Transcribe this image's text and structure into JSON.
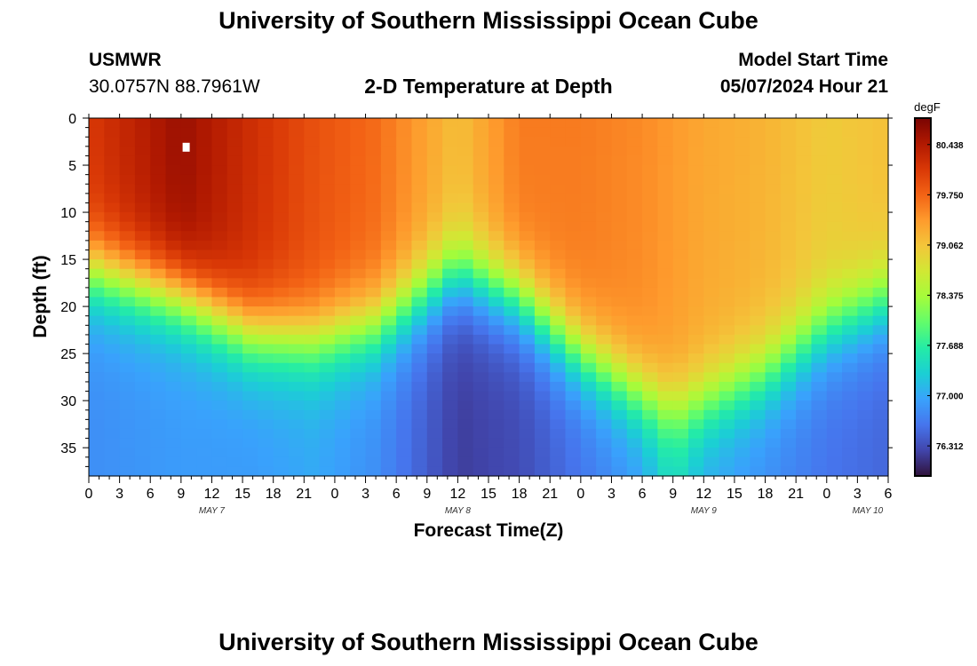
{
  "header": {
    "title": "University of Southern Mississippi Ocean Cube",
    "station": "USMWR",
    "coordinates": "30.0757N  88.7961W",
    "subtitle": "2-D Temperature at Depth",
    "model_start_label": "Model Start Time",
    "model_start_value": "05/07/2024 Hour 21"
  },
  "footer": {
    "title": "University of Southern Mississippi Ocean Cube"
  },
  "chart_data": {
    "type": "heatmap",
    "title": "2-D Temperature at Depth",
    "xlabel": "Forecast Time(Z)",
    "ylabel": "Depth (ft)",
    "x_range_hours": [
      0,
      78
    ],
    "y_range_ft": [
      0,
      38
    ],
    "x_ticks": [
      {
        "h": 0,
        "label": "0"
      },
      {
        "h": 3,
        "label": "3"
      },
      {
        "h": 6,
        "label": "6"
      },
      {
        "h": 9,
        "label": "9"
      },
      {
        "h": 12,
        "label": "12"
      },
      {
        "h": 15,
        "label": "15"
      },
      {
        "h": 18,
        "label": "18"
      },
      {
        "h": 21,
        "label": "21"
      },
      {
        "h": 24,
        "label": "0"
      },
      {
        "h": 27,
        "label": "3"
      },
      {
        "h": 30,
        "label": "6"
      },
      {
        "h": 33,
        "label": "9"
      },
      {
        "h": 36,
        "label": "12"
      },
      {
        "h": 39,
        "label": "15"
      },
      {
        "h": 42,
        "label": "18"
      },
      {
        "h": 45,
        "label": "21"
      },
      {
        "h": 48,
        "label": "0"
      },
      {
        "h": 51,
        "label": "3"
      },
      {
        "h": 54,
        "label": "6"
      },
      {
        "h": 57,
        "label": "9"
      },
      {
        "h": 60,
        "label": "12"
      },
      {
        "h": 63,
        "label": "15"
      },
      {
        "h": 66,
        "label": "18"
      },
      {
        "h": 69,
        "label": "21"
      },
      {
        "h": 72,
        "label": "0"
      },
      {
        "h": 75,
        "label": "3"
      },
      {
        "h": 78,
        "label": "6"
      }
    ],
    "day_labels": [
      {
        "h": 12,
        "label": "MAY 7"
      },
      {
        "h": 36,
        "label": "MAY 8"
      },
      {
        "h": 60,
        "label": "MAY 9"
      },
      {
        "h": 76,
        "label": "MAY 10"
      }
    ],
    "y_ticks": [
      0,
      5,
      10,
      15,
      20,
      25,
      30,
      35
    ],
    "colorbar": {
      "unit": "degF",
      "min": 75.9,
      "max": 80.8,
      "tick_labels": [
        "80.438",
        "79.750",
        "79.062",
        "78.375",
        "77.688",
        "77.000",
        "76.312"
      ],
      "tick_values": [
        80.438,
        79.75,
        79.062,
        78.375,
        77.688,
        77.0,
        76.312
      ]
    },
    "colormap": [
      "#30123b",
      "#4145ab",
      "#4675ed",
      "#39a2fc",
      "#1bcfd4",
      "#24eca6",
      "#61fc6c",
      "#a4fc3b",
      "#d1e834",
      "#f3c63a",
      "#fe9b2d",
      "#f36315",
      "#d93806",
      "#b11901",
      "#7a0403"
    ],
    "resolution": {
      "hour_step": 1.5,
      "depth_step": 1
    },
    "profile_hours": [
      0,
      9,
      16,
      22,
      28,
      36,
      42,
      48,
      54,
      57,
      60,
      66,
      72,
      78
    ],
    "thermocline_depth": [
      16,
      19,
      23,
      23.5,
      22,
      16,
      19,
      25,
      29.5,
      31,
      30,
      27,
      22,
      19
    ],
    "surface_temp": [
      80.1,
      80.6,
      80.2,
      79.9,
      79.7,
      79.1,
      79.6,
      79.6,
      79.5,
      79.4,
      79.3,
      79.2,
      79.0,
      79.1
    ],
    "deep_temp": [
      76.8,
      76.9,
      76.9,
      77.0,
      76.8,
      76.2,
      76.3,
      76.6,
      76.9,
      77.4,
      77.0,
      76.8,
      76.6,
      76.5
    ],
    "marker": {
      "h": 9.5,
      "depth": 3
    }
  }
}
